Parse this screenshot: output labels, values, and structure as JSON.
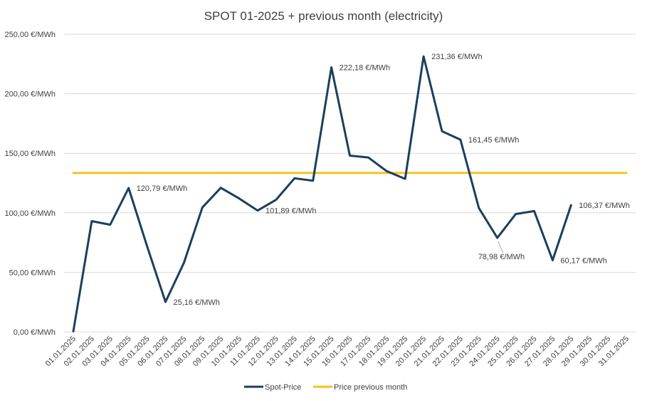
{
  "chart_data": {
    "type": "line",
    "title": "SPOT 01-2025 + previous month (electricity)",
    "xlabel": "",
    "ylabel": "",
    "ylim": [
      0,
      250
    ],
    "y_ticks": [
      0,
      50,
      100,
      150,
      200,
      250
    ],
    "y_tick_labels": [
      "0,00 €/MWh",
      "50,00 €/MWh",
      "100,00 €/MWh",
      "150,00 €/MWh",
      "200,00 €/MWh",
      "250,00 €/MWh"
    ],
    "grid": true,
    "legend_position": "bottom",
    "categories": [
      "01.01.2025",
      "02.01.2025",
      "03.01.2025",
      "04.01.2025",
      "05.01.2025",
      "06.01.2025",
      "07.01.2025",
      "08.01.2025",
      "09.01.2025",
      "10.01.2025",
      "11.01.2025",
      "12.01.2025",
      "13.01.2025",
      "14.01.2025",
      "15.01.2025",
      "16.01.2025",
      "17.01.2025",
      "18.01.2025",
      "19.01.2025",
      "20.01.2025",
      "21.01.2025",
      "22.01.2025",
      "23.01.2025",
      "24.01.2025",
      "25.01.2025",
      "26.01.2025",
      "27.01.2025",
      "28.01.2025",
      "29.01.2025",
      "30.01.2025",
      "31.01.2025"
    ],
    "series": [
      {
        "name": "Spot-Price",
        "color": "#1b3f5e",
        "values": [
          0.5,
          93,
          90,
          120.79,
          72,
          25.16,
          58,
          104.5,
          121,
          112,
          101.89,
          111,
          129,
          127,
          222.18,
          148,
          146.5,
          135,
          128.5,
          231.36,
          168.5,
          161.45,
          104,
          78.98,
          99,
          101.5,
          60.17,
          106.37,
          null,
          null,
          null
        ]
      },
      {
        "name": "Price previous month",
        "color": "#f5c11a",
        "values": [
          133.5,
          133.5,
          133.5,
          133.5,
          133.5,
          133.5,
          133.5,
          133.5,
          133.5,
          133.5,
          133.5,
          133.5,
          133.5,
          133.5,
          133.5,
          133.5,
          133.5,
          133.5,
          133.5,
          133.5,
          133.5,
          133.5,
          133.5,
          133.5,
          133.5,
          133.5,
          133.5,
          133.5,
          133.5,
          133.5,
          133.5
        ]
      }
    ],
    "annotations": [
      {
        "index": 3,
        "text": "120,79 €/MWh",
        "placement": "right"
      },
      {
        "index": 5,
        "text": "25,16 €/MWh",
        "placement": "right"
      },
      {
        "index": 10,
        "text": "101,89 €/MWh",
        "placement": "right"
      },
      {
        "index": 14,
        "text": "222,18 €/MWh",
        "placement": "right"
      },
      {
        "index": 19,
        "text": "231,36 €/MWh",
        "placement": "right"
      },
      {
        "index": 21,
        "text": "161,45 €/MWh",
        "placement": "right"
      },
      {
        "index": 23,
        "text": "78,98 €/MWh",
        "placement": "below-leader"
      },
      {
        "index": 26,
        "text": "60,17 €/MWh",
        "placement": "right"
      },
      {
        "index": 27,
        "text": "106,37 €/MWh",
        "placement": "right"
      }
    ]
  }
}
